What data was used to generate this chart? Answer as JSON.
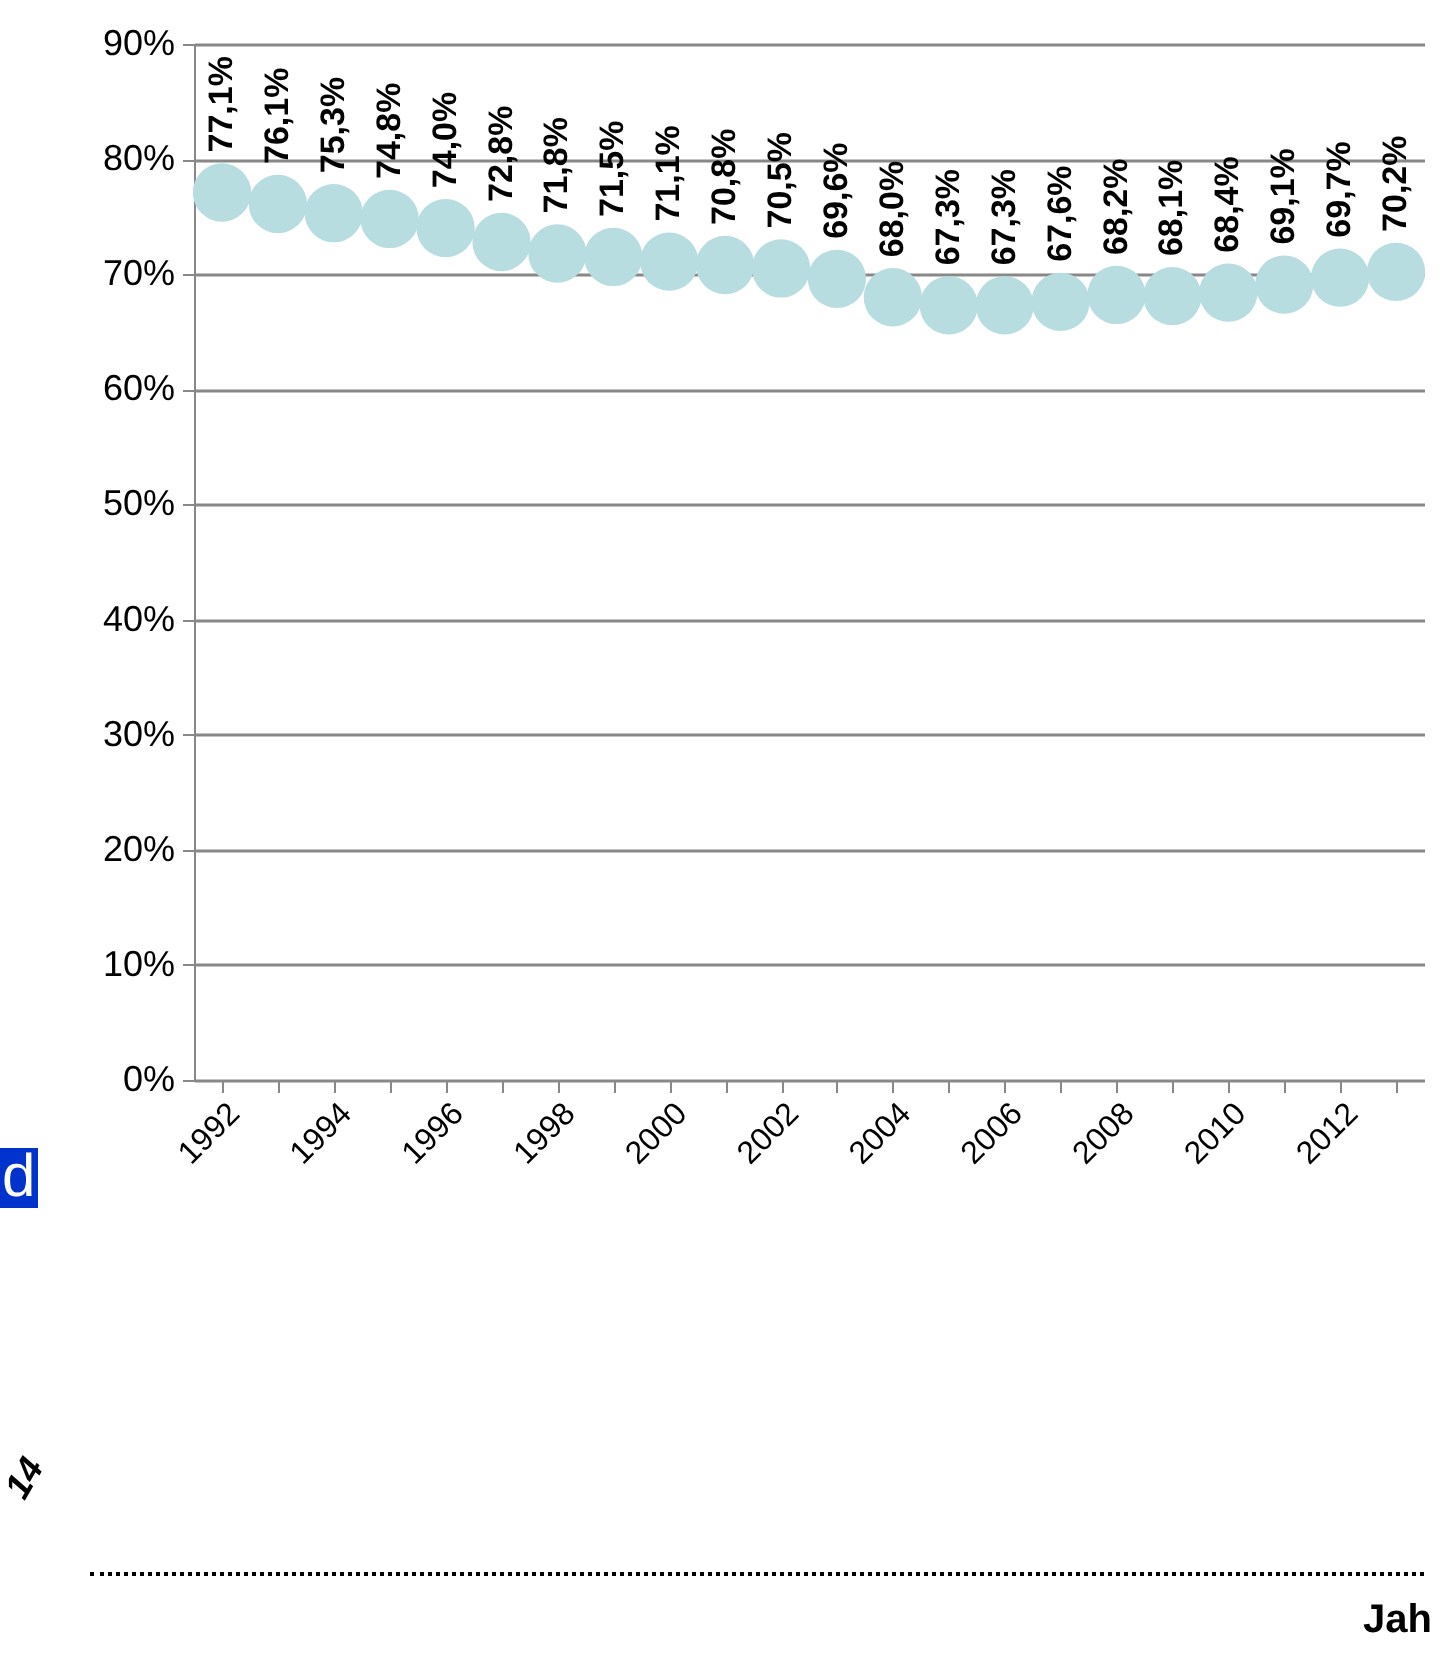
{
  "chart_data": {
    "type": "scatter",
    "categories": [
      "1992",
      null,
      "1994",
      null,
      "1996",
      null,
      "1998",
      null,
      "2000",
      null,
      "2002",
      null,
      "2004",
      null,
      "2006",
      null,
      "2008",
      null,
      "2010",
      null,
      "2012",
      null
    ],
    "series": [
      {
        "color": "#b7dde1",
        "values": [
          77.1,
          76.1,
          75.3,
          74.8,
          74.0,
          72.8,
          71.8,
          71.5,
          71.1,
          70.8,
          70.5,
          69.6,
          68.0,
          67.3,
          67.3,
          67.6,
          68.2,
          68.1,
          68.4,
          69.1,
          69.7,
          70.2
        ],
        "value_labels": [
          "77,1%",
          "76,1%",
          "75,3%",
          "74,8%",
          "74,0%",
          "72,8%",
          "71,8%",
          "71,5%",
          "71,1%",
          "70,8%",
          "70,5%",
          "69,6%",
          "68,0%",
          "67,3%",
          "67,3%",
          "67,6%",
          "68,2%",
          "68,1%",
          "68,4%",
          "69,1%",
          "69,7%",
          "70,2%"
        ]
      }
    ],
    "ylim": [
      0,
      90
    ],
    "yticks": [
      {
        "value": 0,
        "label": "0%"
      },
      {
        "value": 10,
        "label": "10%"
      },
      {
        "value": 20,
        "label": "20%"
      },
      {
        "value": 30,
        "label": "30%"
      },
      {
        "value": 40,
        "label": "40%"
      },
      {
        "value": 50,
        "label": "50%"
      },
      {
        "value": 60,
        "label": "60%"
      },
      {
        "value": 70,
        "label": "70%"
      },
      {
        "value": 80,
        "label": "80%"
      },
      {
        "value": 90,
        "label": "90%"
      }
    ],
    "grid": "y",
    "marker": "circle",
    "annotations": [
      "d",
      "14",
      "Jah"
    ]
  }
}
